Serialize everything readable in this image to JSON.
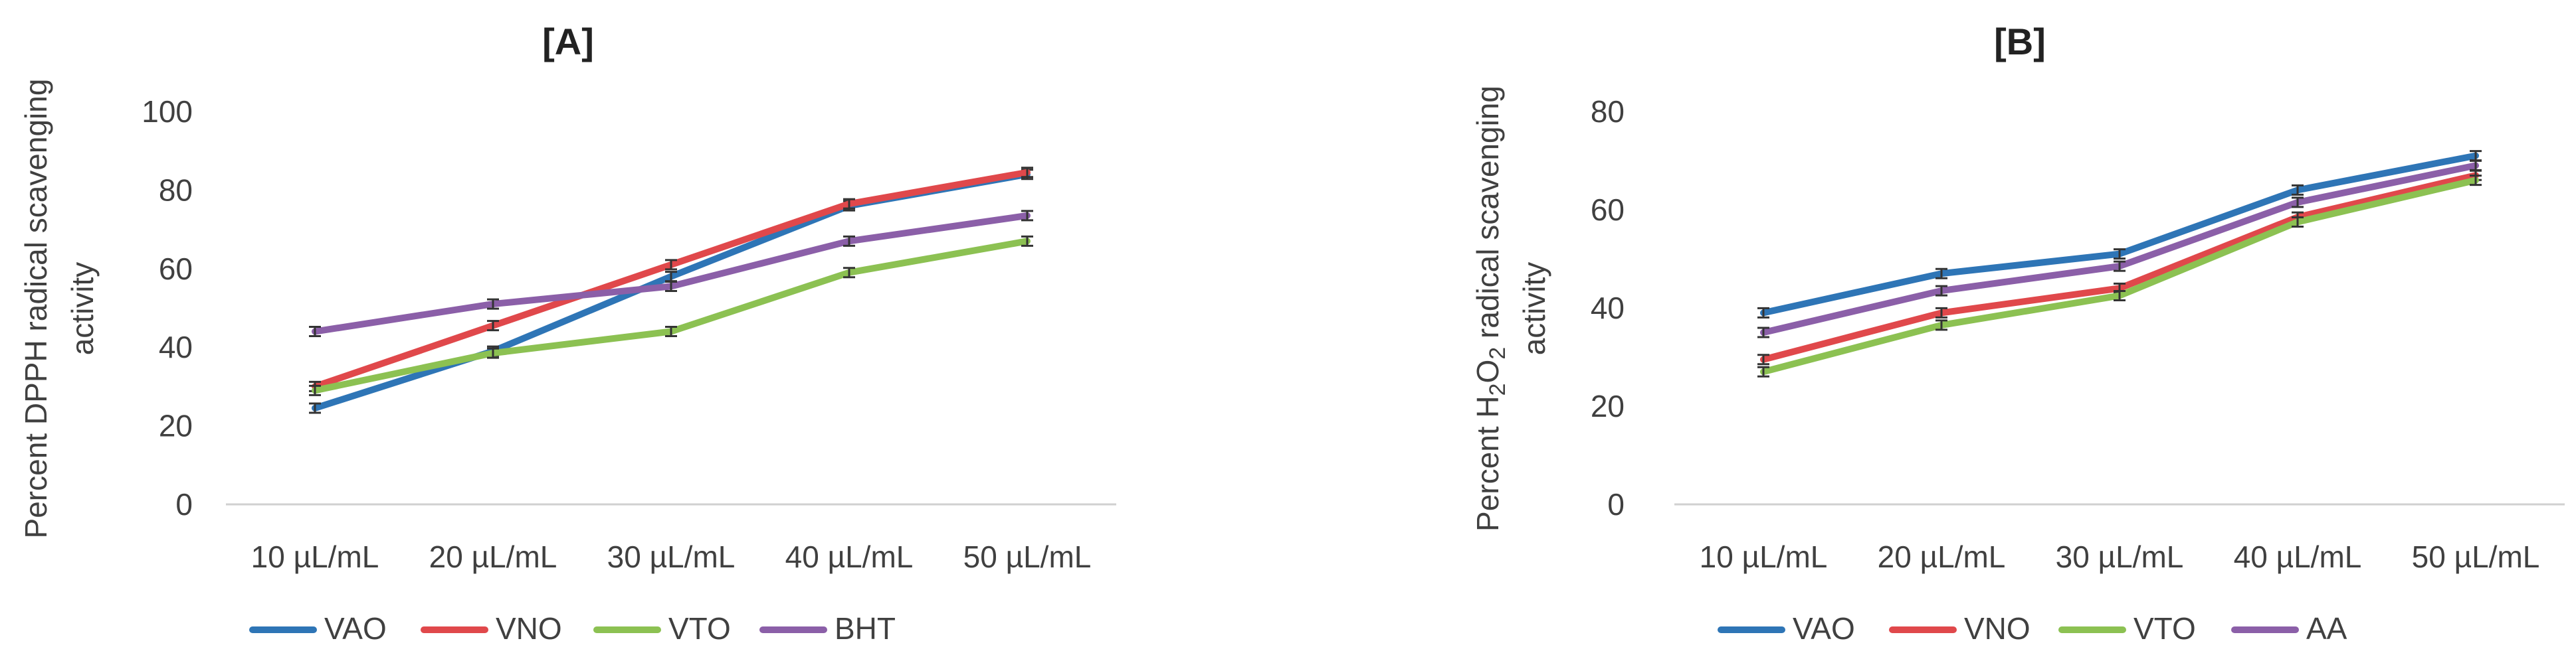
{
  "chart_data": [
    {
      "type": "line",
      "title": "[A]",
      "ylabel_line1": "Percent DPPH radical scavenging",
      "ylabel_line2": "activity",
      "categories": [
        "10 µL/mL",
        "20 µL/mL",
        "30 µL/mL",
        "40 µL/mL",
        "50 µL/mL"
      ],
      "ylim": [
        0,
        100
      ],
      "yticks": [
        0,
        20,
        40,
        60,
        80,
        100
      ],
      "grid": false,
      "legend_position": "bottom",
      "series": [
        {
          "name": "VAO",
          "color": "#2E75B6",
          "values": [
            24.5,
            39,
            58,
            76,
            84
          ]
        },
        {
          "name": "VNO",
          "color": "#E0484B",
          "values": [
            30,
            45.5,
            61,
            76.5,
            84.5
          ]
        },
        {
          "name": "VTO",
          "color": "#8CC152",
          "values": [
            29,
            38.5,
            44,
            59,
            67
          ]
        },
        {
          "name": "BHT",
          "color": "#8B5FA8",
          "values": [
            44,
            51,
            55.5,
            67,
            73.5
          ]
        }
      ]
    },
    {
      "type": "line",
      "title": "[B]",
      "ylabel_line1_prefix": "Percent H",
      "ylabel_sub1": "2",
      "ylabel_mid": "O",
      "ylabel_sub2": "2",
      "ylabel_line1_suffix": " radical scavenging",
      "ylabel_line2": "activity",
      "categories": [
        "10 µL/mL",
        "20 µL/mL",
        "30 µL/mL",
        "40 µL/mL",
        "50 µL/mL"
      ],
      "ylim": [
        0,
        80
      ],
      "yticks": [
        0,
        20,
        40,
        60,
        80
      ],
      "grid": false,
      "legend_position": "bottom",
      "series": [
        {
          "name": "VAO",
          "color": "#2E75B6",
          "values": [
            39,
            47,
            51,
            64,
            71
          ]
        },
        {
          "name": "VNO",
          "color": "#E0484B",
          "values": [
            29.5,
            39,
            44,
            58.5,
            67
          ]
        },
        {
          "name": "VTO",
          "color": "#8CC152",
          "values": [
            27,
            36.5,
            42.5,
            57.5,
            66
          ]
        },
        {
          "name": "AA",
          "color": "#8B5FA8",
          "values": [
            35,
            43.5,
            48.5,
            61.5,
            69
          ]
        }
      ]
    }
  ]
}
